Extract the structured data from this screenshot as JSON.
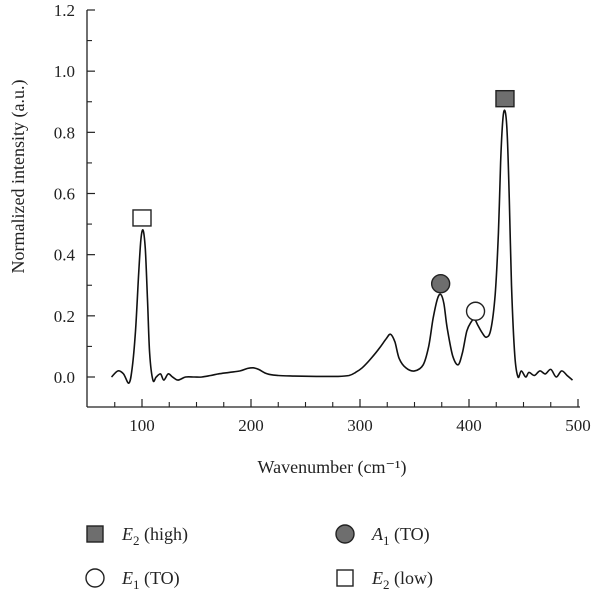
{
  "chart_data": {
    "type": "line",
    "xlabel": "Wavenumber (cm⁻¹)",
    "ylabel": "Normalized intensity (a.u.)",
    "xlim": [
      70,
      500
    ],
    "ylim": [
      0,
      1.2
    ],
    "x_ticks": [
      100,
      200,
      300,
      400,
      500
    ],
    "x_tick_labels": [
      "100",
      "200",
      "300",
      "400",
      "500"
    ],
    "y_ticks": [
      0,
      0.2,
      0.4,
      0.6,
      0.8,
      1.0,
      1.2
    ],
    "y_tick_labels": [
      "0.0",
      "0.2",
      "0.4",
      "0.6",
      "0.8",
      "1.0",
      "1.2"
    ],
    "series": [
      {
        "x": [
          72,
          78,
          83,
          88,
          91,
          94,
          97,
          99,
          101,
          103,
          105,
          107,
          110,
          113,
          117,
          120,
          124,
          128,
          133,
          140,
          148,
          155,
          163,
          170,
          180,
          190,
          197,
          202,
          207,
          215,
          225,
          240,
          260,
          280,
          290,
          296,
          302,
          310,
          318,
          324,
          328,
          332,
          336,
          342,
          350,
          358,
          363,
          367,
          371,
          374,
          377,
          380,
          385,
          390,
          394,
          398,
          402,
          405,
          408,
          412,
          416,
          420,
          424,
          427,
          429,
          431,
          433,
          435,
          437,
          439,
          442,
          445,
          448,
          452,
          455,
          460,
          465,
          470,
          475,
          480,
          485,
          490,
          495
        ],
        "y": [
          0.0,
          0.02,
          0.01,
          -0.02,
          0.03,
          0.15,
          0.34,
          0.45,
          0.48,
          0.42,
          0.26,
          0.08,
          -0.01,
          0.0,
          0.01,
          -0.01,
          0.01,
          0.0,
          -0.01,
          0.0,
          0.0,
          0.0,
          0.005,
          0.01,
          0.015,
          0.02,
          0.028,
          0.03,
          0.025,
          0.01,
          0.005,
          0.003,
          0.002,
          0.002,
          0.005,
          0.015,
          0.03,
          0.06,
          0.095,
          0.125,
          0.14,
          0.115,
          0.06,
          0.03,
          0.02,
          0.04,
          0.1,
          0.19,
          0.255,
          0.27,
          0.24,
          0.16,
          0.07,
          0.04,
          0.08,
          0.15,
          0.18,
          0.19,
          0.17,
          0.145,
          0.13,
          0.155,
          0.27,
          0.47,
          0.7,
          0.84,
          0.87,
          0.8,
          0.58,
          0.3,
          0.07,
          0.0,
          0.02,
          0.0,
          0.015,
          0.005,
          0.02,
          0.01,
          0.025,
          0.0,
          0.02,
          0.005,
          -0.01
        ]
      }
    ],
    "markers": [
      {
        "shape": "square",
        "fill": "#6e6e6e",
        "x": 433,
        "y": 0.91
      },
      {
        "shape": "circle",
        "fill": "#6e6e6e",
        "x": 374,
        "y": 0.305
      },
      {
        "shape": "circle",
        "fill": "#ffffff",
        "x": 406,
        "y": 0.215
      },
      {
        "shape": "square",
        "fill": "#ffffff",
        "x": 100,
        "y": 0.52
      }
    ],
    "legend": {
      "placement": "bottom",
      "entries": [
        {
          "symbol": "square",
          "fill": "#6e6e6e",
          "letter": "E",
          "sub": "2",
          "rest": " (high)"
        },
        {
          "symbol": "circle",
          "fill": "#6e6e6e",
          "letter": "A",
          "sub": "1",
          "rest": " (TO)"
        },
        {
          "symbol": "circle",
          "fill": "#ffffff",
          "letter": "E",
          "sub": "1",
          "rest": " (TO)"
        },
        {
          "symbol": "square",
          "fill": "#ffffff",
          "letter": "E",
          "sub": "2",
          "rest": " (low)"
        }
      ]
    },
    "colors": {
      "line": "#111111",
      "axis": "#222222",
      "marker_stroke": "#222222"
    }
  }
}
